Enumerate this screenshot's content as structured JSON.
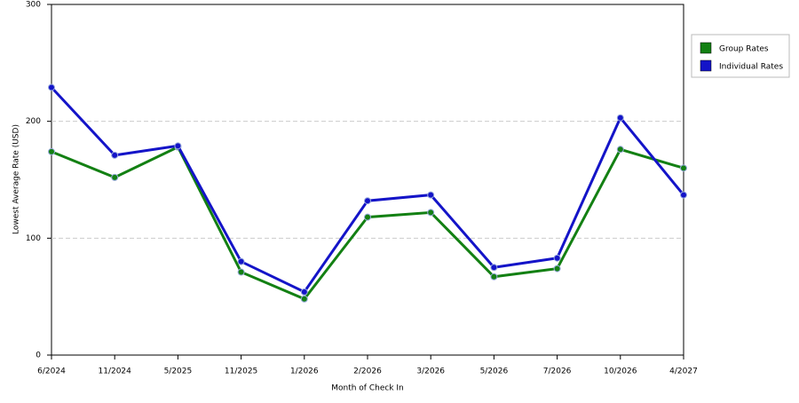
{
  "chart_data": {
    "type": "line",
    "x_label": "Month of Check In",
    "y_label": "Lowest Average Rate (USD)",
    "categories": [
      "6/2024",
      "11/2024",
      "5/2025",
      "11/2025",
      "1/2026",
      "2/2026",
      "3/2026",
      "5/2026",
      "7/2026",
      "10/2026",
      "4/2027"
    ],
    "series": [
      {
        "name": "Group Rates",
        "color": "#138013",
        "values": [
          174,
          152,
          178,
          71,
          48,
          118,
          122,
          67,
          74,
          176,
          160
        ]
      },
      {
        "name": "Individual Rates",
        "color": "#1414c8",
        "values": [
          229,
          171,
          179,
          80,
          54,
          132,
          137,
          75,
          83,
          203,
          137
        ]
      }
    ],
    "ylim": [
      0,
      300
    ],
    "yticks": [
      0,
      100,
      200,
      300
    ],
    "grid": true,
    "legend": "right"
  }
}
